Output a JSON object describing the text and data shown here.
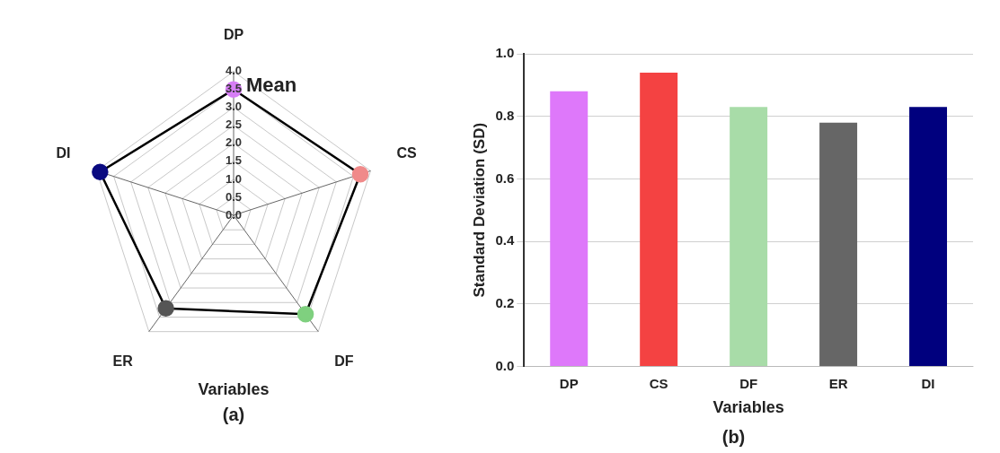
{
  "chart_data": [
    {
      "type": "radar",
      "xlabel": "Variables",
      "annotations": [
        "(a)"
      ],
      "categories": [
        "DP",
        "CS",
        "DF",
        "ER",
        "DI"
      ],
      "series": [
        {
          "name": "Mean",
          "color": "#000000",
          "colors": [
            "#d67ef5",
            "#f08a8a",
            "#7fd07f",
            "#555555",
            "#0a0a80"
          ],
          "values": [
            3.5,
            3.7,
            3.4,
            3.2,
            3.9
          ]
        }
      ],
      "ylim": [
        0,
        4
      ],
      "yticks": [
        {
          "value": 0,
          "label": "0.0"
        },
        {
          "value": 0.5,
          "label": "0.5"
        },
        {
          "value": 1,
          "label": "1.0"
        },
        {
          "value": 1.5,
          "label": "1.5"
        },
        {
          "value": 2,
          "label": "2.0"
        },
        {
          "value": 2.5,
          "label": "2.5"
        },
        {
          "value": 3,
          "label": "3.0"
        },
        {
          "value": 3.5,
          "label": "3.5"
        },
        {
          "value": 4,
          "label": "4.0"
        }
      ],
      "grid": true,
      "marker": "circle",
      "legend": false
    },
    {
      "type": "bar",
      "xlabel": "Variables",
      "ylabel": "Standard Deviation (SD)",
      "annotations": [
        "(b)"
      ],
      "categories": [
        "DP",
        "CS",
        "DF",
        "ER",
        "DI"
      ],
      "series": [
        {
          "colors": [
            "#de78fa",
            "#f44242",
            "#a8dca8",
            "#666666",
            "#00007e"
          ],
          "values": [
            0.88,
            0.94,
            0.83,
            0.78,
            0.83
          ]
        }
      ],
      "ylim": [
        0,
        1
      ],
      "yticks": [
        {
          "value": 0,
          "label": "0.0"
        },
        {
          "value": 0.2,
          "label": "0.2"
        },
        {
          "value": 0.4,
          "label": "0.4"
        },
        {
          "value": 0.6,
          "label": "0.6"
        },
        {
          "value": 0.8,
          "label": "0.8"
        },
        {
          "value": 1,
          "label": "1.0"
        }
      ],
      "grid": "y",
      "legend": false
    }
  ]
}
